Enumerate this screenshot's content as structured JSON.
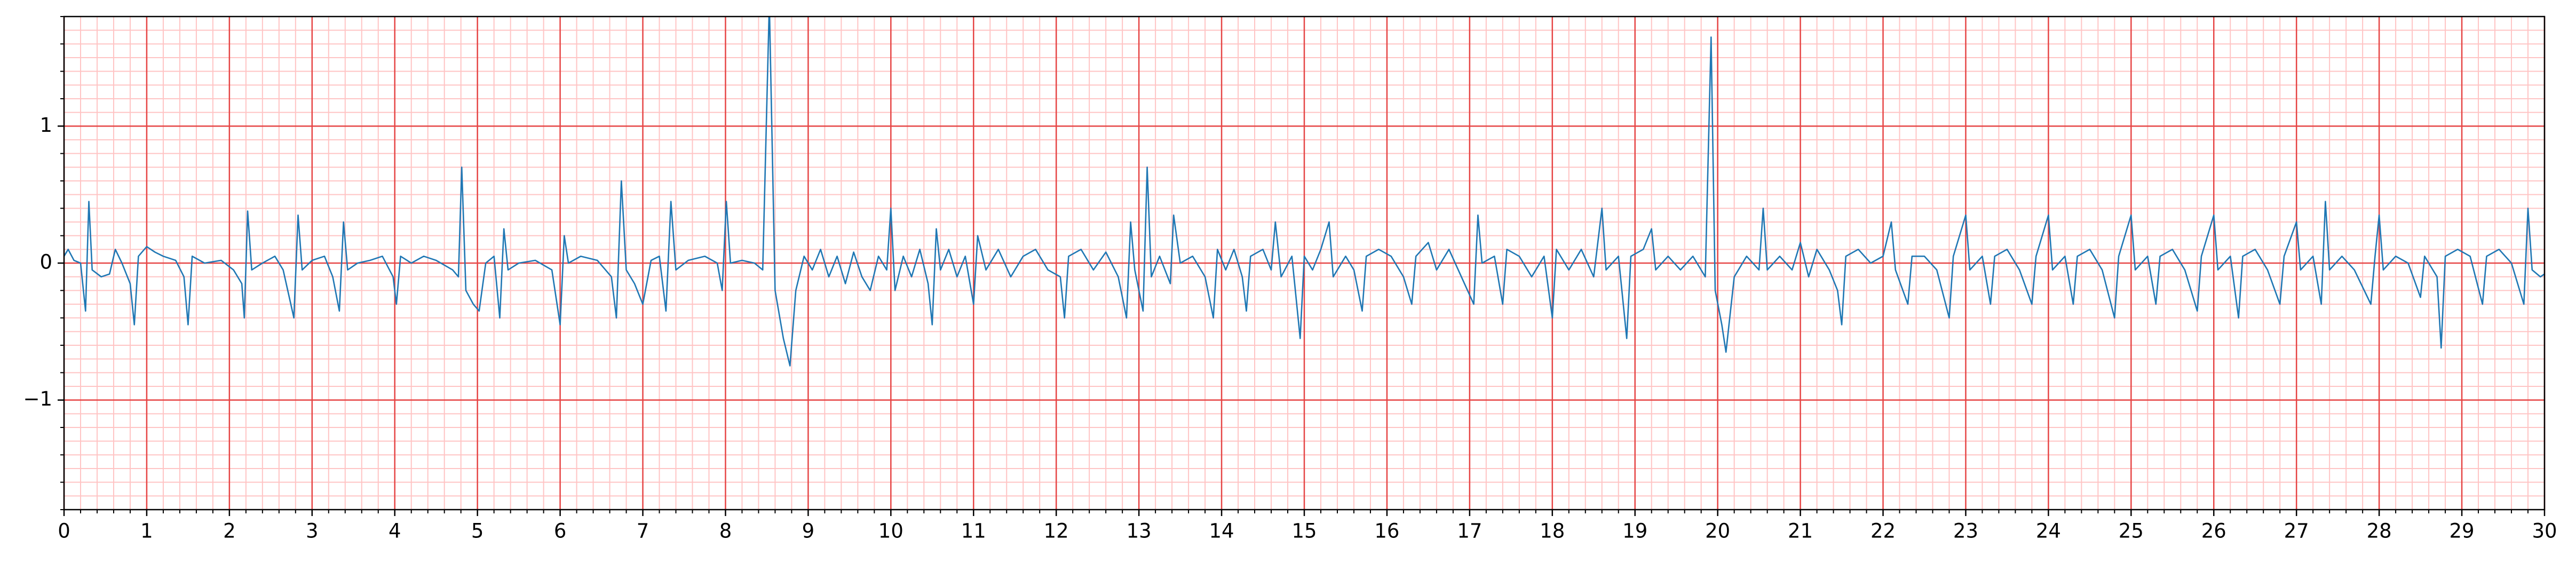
{
  "chart_data": {
    "type": "line",
    "x": [
      0,
      0.05,
      0.12,
      0.2,
      0.26,
      0.3,
      0.34,
      0.45,
      0.55,
      0.62,
      0.7,
      0.8,
      0.85,
      0.9,
      1.0,
      1.1,
      1.2,
      1.35,
      1.45,
      1.5,
      1.55,
      1.7,
      1.9,
      2.05,
      2.15,
      2.18,
      2.22,
      2.27,
      2.4,
      2.55,
      2.65,
      2.78,
      2.83,
      2.88,
      3.0,
      3.15,
      3.25,
      3.33,
      3.38,
      3.43,
      3.55,
      3.7,
      3.85,
      3.98,
      4.02,
      4.07,
      4.2,
      4.35,
      4.5,
      4.7,
      4.77,
      4.81,
      4.86,
      4.95,
      5.02,
      5.1,
      5.2,
      5.27,
      5.32,
      5.37,
      5.5,
      5.7,
      5.9,
      6.0,
      6.05,
      6.1,
      6.25,
      6.45,
      6.62,
      6.68,
      6.74,
      6.8,
      6.9,
      7.0,
      7.1,
      7.2,
      7.28,
      7.34,
      7.4,
      7.55,
      7.75,
      7.9,
      7.96,
      8.01,
      8.06,
      8.2,
      8.35,
      8.45,
      8.53,
      8.6,
      8.7,
      8.78,
      8.85,
      8.95,
      9.05,
      9.15,
      9.25,
      9.35,
      9.45,
      9.55,
      9.65,
      9.75,
      9.85,
      9.95,
      10.0,
      10.05,
      10.15,
      10.25,
      10.35,
      10.45,
      10.5,
      10.55,
      10.6,
      10.7,
      10.8,
      10.9,
      11.0,
      11.05,
      11.15,
      11.3,
      11.45,
      11.6,
      11.75,
      11.9,
      12.05,
      12.1,
      12.15,
      12.3,
      12.45,
      12.6,
      12.75,
      12.85,
      12.9,
      12.95,
      13.05,
      13.1,
      13.15,
      13.25,
      13.38,
      13.42,
      13.5,
      13.65,
      13.8,
      13.9,
      13.95,
      14.05,
      14.15,
      14.25,
      14.3,
      14.35,
      14.5,
      14.6,
      14.65,
      14.72,
      14.85,
      14.95,
      15.0,
      15.1,
      15.2,
      15.3,
      15.35,
      15.5,
      15.6,
      15.7,
      15.75,
      15.9,
      16.05,
      16.2,
      16.3,
      16.35,
      16.5,
      16.6,
      16.75,
      16.9,
      17.05,
      17.1,
      17.15,
      17.3,
      17.4,
      17.45,
      17.6,
      17.75,
      17.9,
      18.0,
      18.05,
      18.2,
      18.35,
      18.5,
      18.6,
      18.65,
      18.8,
      18.9,
      18.95,
      19.1,
      19.2,
      19.25,
      19.4,
      19.55,
      19.7,
      19.85,
      19.92,
      19.97,
      20.05,
      20.1,
      20.2,
      20.35,
      20.5,
      20.55,
      20.6,
      20.75,
      20.9,
      21.0,
      21.1,
      21.2,
      21.35,
      21.45,
      21.5,
      21.55,
      21.7,
      21.85,
      22.0,
      22.1,
      22.15,
      22.3,
      22.35,
      22.5,
      22.65,
      22.8,
      22.85,
      23.0,
      23.05,
      23.2,
      23.3,
      23.35,
      23.5,
      23.65,
      23.8,
      23.85,
      24.0,
      24.05,
      24.2,
      24.3,
      24.35,
      24.5,
      24.65,
      24.8,
      24.85,
      25.0,
      25.05,
      25.2,
      25.3,
      25.35,
      25.5,
      25.65,
      25.8,
      25.85,
      26.0,
      26.05,
      26.2,
      26.3,
      26.35,
      26.5,
      26.65,
      26.8,
      26.85,
      27.0,
      27.05,
      27.2,
      27.3,
      27.35,
      27.4,
      27.55,
      27.7,
      27.9,
      27.95,
      28.0,
      28.05,
      28.2,
      28.35,
      28.5,
      28.55,
      28.7,
      28.75,
      28.8,
      28.95,
      29.1,
      29.25,
      29.3,
      29.45,
      29.6,
      29.75,
      29.8,
      29.85,
      29.95,
      30
    ],
    "values": [
      0.05,
      0.1,
      0.02,
      0.0,
      -0.35,
      0.45,
      -0.05,
      -0.1,
      -0.08,
      0.1,
      0.0,
      -0.15,
      -0.45,
      0.05,
      0.12,
      0.08,
      0.05,
      0.02,
      -0.1,
      -0.45,
      0.05,
      0.0,
      0.02,
      -0.05,
      -0.15,
      -0.4,
      0.38,
      -0.05,
      0.0,
      0.05,
      -0.05,
      -0.4,
      0.35,
      -0.05,
      0.02,
      0.05,
      -0.1,
      -0.35,
      0.3,
      -0.05,
      0.0,
      0.02,
      0.05,
      -0.1,
      -0.3,
      0.05,
      0.0,
      0.05,
      0.02,
      -0.05,
      -0.1,
      0.7,
      -0.2,
      -0.3,
      -0.35,
      0.0,
      0.05,
      -0.4,
      0.25,
      -0.05,
      0.0,
      0.02,
      -0.05,
      -0.45,
      0.2,
      0.0,
      0.05,
      0.02,
      -0.1,
      -0.4,
      0.6,
      -0.05,
      -0.15,
      -0.3,
      0.02,
      0.05,
      -0.35,
      0.45,
      -0.05,
      0.02,
      0.05,
      0.0,
      -0.2,
      0.45,
      0.0,
      0.02,
      0.0,
      -0.05,
      1.9,
      -0.2,
      -0.55,
      -0.75,
      -0.2,
      0.05,
      -0.05,
      0.1,
      -0.1,
      0.05,
      -0.15,
      0.08,
      -0.1,
      -0.2,
      0.05,
      -0.05,
      0.4,
      -0.2,
      0.05,
      -0.1,
      0.1,
      -0.15,
      -0.45,
      0.25,
      -0.05,
      0.1,
      -0.1,
      0.05,
      -0.3,
      0.2,
      -0.05,
      0.1,
      -0.1,
      0.05,
      0.1,
      -0.05,
      -0.1,
      -0.4,
      0.05,
      0.1,
      -0.05,
      0.08,
      -0.1,
      -0.4,
      0.3,
      -0.05,
      -0.35,
      0.7,
      -0.1,
      0.05,
      -0.15,
      0.35,
      0.0,
      0.05,
      -0.1,
      -0.4,
      0.1,
      -0.05,
      0.1,
      -0.1,
      -0.35,
      0.05,
      0.1,
      -0.05,
      0.3,
      -0.1,
      0.05,
      -0.55,
      0.05,
      -0.05,
      0.1,
      0.3,
      -0.1,
      0.05,
      -0.05,
      -0.35,
      0.05,
      0.1,
      0.05,
      -0.1,
      -0.3,
      0.05,
      0.15,
      -0.05,
      0.1,
      -0.1,
      -0.3,
      0.35,
      0.0,
      0.05,
      -0.3,
      0.1,
      0.05,
      -0.1,
      0.05,
      -0.4,
      0.1,
      -0.05,
      0.1,
      -0.1,
      0.4,
      -0.05,
      0.05,
      -0.55,
      0.05,
      0.1,
      0.25,
      -0.05,
      0.05,
      -0.05,
      0.05,
      -0.1,
      1.65,
      -0.2,
      -0.45,
      -0.65,
      -0.1,
      0.05,
      -0.05,
      0.4,
      -0.05,
      0.05,
      -0.05,
      0.15,
      -0.1,
      0.1,
      -0.05,
      -0.2,
      -0.45,
      0.05,
      0.1,
      0.0,
      0.05,
      0.3,
      -0.05,
      -0.3,
      0.05,
      0.05,
      -0.05,
      -0.4,
      0.05,
      0.35,
      -0.05,
      0.05,
      -0.3,
      0.05,
      0.1,
      -0.05,
      -0.3,
      0.05,
      0.35,
      -0.05,
      0.05,
      -0.3,
      0.05,
      0.1,
      -0.05,
      -0.4,
      0.05,
      0.35,
      -0.05,
      0.05,
      -0.3,
      0.05,
      0.1,
      -0.05,
      -0.35,
      0.05,
      0.35,
      -0.05,
      0.05,
      -0.4,
      0.05,
      0.1,
      -0.05,
      -0.3,
      0.05,
      0.3,
      -0.05,
      0.05,
      -0.3,
      0.45,
      -0.05,
      0.05,
      -0.05,
      -0.3,
      0.05,
      0.35,
      -0.05,
      0.05,
      0.0,
      -0.25,
      0.05,
      -0.1,
      -0.62,
      0.05,
      0.1,
      0.05,
      -0.3,
      0.05,
      0.1,
      0.0,
      -0.3,
      0.4,
      -0.05,
      -0.1,
      -0.08
    ],
    "color": "#1f77b4",
    "xlim": [
      0,
      30
    ],
    "ylim": [
      -1.8,
      1.8
    ],
    "xticks": [
      0,
      1,
      2,
      3,
      4,
      5,
      6,
      7,
      8,
      9,
      10,
      11,
      12,
      13,
      14,
      15,
      16,
      17,
      18,
      19,
      20,
      21,
      22,
      23,
      24,
      25,
      26,
      27,
      28,
      29,
      30
    ],
    "yticks": [
      {
        "value": -1,
        "label": "−1"
      },
      0,
      1
    ],
    "grid": true,
    "grid_color": "#e64545",
    "minor_grid_color": "#ffc4c4",
    "minor_grid": {
      "x": 0.2,
      "y": 0.1
    }
  }
}
